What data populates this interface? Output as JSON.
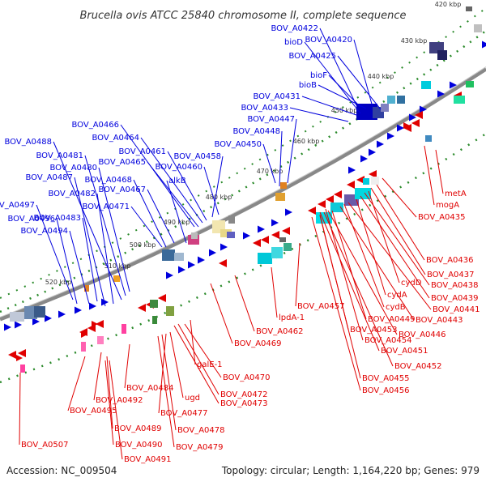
{
  "title": "Brucella ovis ATCC 25840 chromosome II, complete sequence",
  "footer": {
    "accession": "Accession: NC_009504",
    "summary": "Topology: circular; Length: 1,164,220 bp; Genes: 979"
  },
  "colors": {
    "blue": "#0000dd",
    "red": "#e00000",
    "backbone": "#888888",
    "tick": "#2a8a2a"
  },
  "kbp_marks": [
    {
      "label": "420 kbp"
    },
    {
      "label": "430 kbp"
    },
    {
      "label": "440 kbp"
    },
    {
      "label": "450 kbp"
    },
    {
      "label": "460 kbp"
    },
    {
      "label": "470 kbp"
    },
    {
      "label": "480 kbp"
    },
    {
      "label": "490 kbp"
    },
    {
      "label": "500 kbp"
    },
    {
      "label": "510 kbp"
    },
    {
      "label": "520 kbp"
    }
  ],
  "blue_labels": [
    "BOV_A0422",
    "bioD",
    "BOV_A0420",
    "BOV_A0425",
    "bioF",
    "bioB",
    "BOV_A0431",
    "BOV_A0433",
    "BOV_A0447",
    "BOV_A0448",
    "BOV_A0450",
    "BOV_A0466",
    "BOV_A0464",
    "BOV_A0461",
    "BOV_A0458",
    "BOV_A0465",
    "BOV_A0460",
    "BOV_A0488",
    "BOV_A0481",
    "BOV_A0480",
    "BOV_A0487",
    "BOV_A0468",
    "alkB",
    "BOV_A0482",
    "BOV_A0467",
    "BOV_A0471",
    "BOV_A0497",
    "BOV_A0483",
    "BOV_A0496",
    "BOV_A0494"
  ],
  "red_labels": [
    "metA",
    "mogA",
    "BOV_A0435",
    "BOV_A0436",
    "BOV_A0437",
    "cydD",
    "BOV_A0438",
    "BOV_A0439",
    "cydA",
    "BOV_A0441",
    "cydB",
    "BOV_A0443",
    "BOV_A0457",
    "BOV_A0449",
    "lpdA-1",
    "BOV_A0453",
    "BOV_A0446",
    "BOV_A0454",
    "BOV_A0462",
    "BOV_A0451",
    "BOV_A0469",
    "BOV_A0452",
    "galE-1",
    "BOV_A0455",
    "BOV_A0470",
    "BOV_A0456",
    "BOV_A0484",
    "BOV_A0472",
    "BOV_A0492",
    "BOV_A0473",
    "ugd",
    "BOV_A0495",
    "BOV_A0477",
    "BOV_A0489",
    "BOV_A0478",
    "BOV_A0507",
    "BOV_A0490",
    "BOV_A0479",
    "BOV_A0491"
  ]
}
